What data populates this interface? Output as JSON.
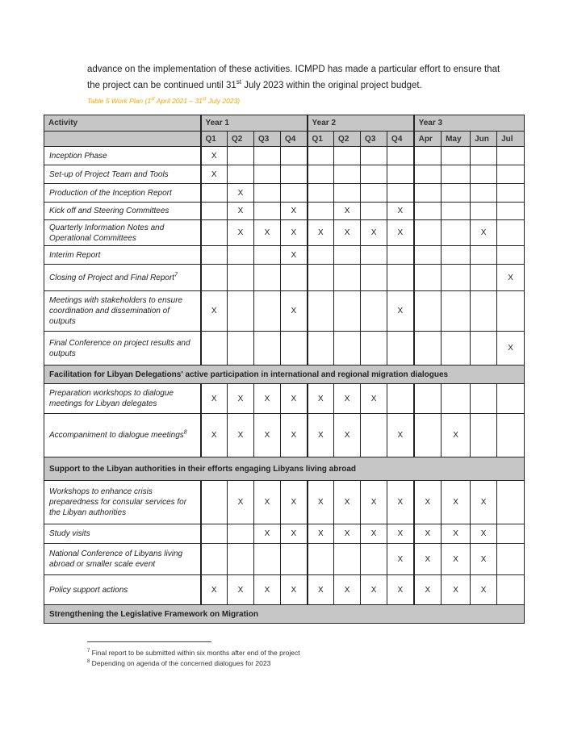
{
  "intro": {
    "line1": "advance on the implementation of these activities. ICMPD has made a particular effort to ensure that",
    "line2_pre": "the project can be continued until 31",
    "line2_sup": "st",
    "line2_post": " July 2023 within the original project budget."
  },
  "caption": {
    "pre": "Table 5 Work Plan (1",
    "sup1": "st",
    "mid": " April 2021 – 31",
    "sup2": "st",
    "post": " July 2023)"
  },
  "table": {
    "header": {
      "activity": "Activity",
      "years": [
        "Year 1",
        "Year 2",
        "Year 3"
      ]
    },
    "subheader": [
      "Q1",
      "Q2",
      "Q3",
      "Q4",
      "Q1",
      "Q2",
      "Q3",
      "Q4",
      "Apr",
      "May",
      "Jun",
      "Jul"
    ],
    "rows": [
      {
        "label": "Inception Phase",
        "cells": [
          "X",
          "",
          "",
          "",
          "",
          "",
          "",
          "",
          "",
          "",
          "",
          ""
        ]
      },
      {
        "label": "Set-up of Project Team and Tools",
        "cells": [
          "X",
          "",
          "",
          "",
          "",
          "",
          "",
          "",
          "",
          "",
          "",
          ""
        ]
      },
      {
        "label": "Production of the Inception Report",
        "cells": [
          "",
          "X",
          "",
          "",
          "",
          "",
          "",
          "",
          "",
          "",
          "",
          ""
        ]
      },
      {
        "label": "Kick off and Steering Committees",
        "cells": [
          "",
          "X",
          "",
          "X",
          "",
          "X",
          "",
          "X",
          "",
          "",
          "",
          ""
        ]
      },
      {
        "label": "Quarterly Information Notes and Operational Committees",
        "cells": [
          "",
          "X",
          "X",
          "X",
          "X",
          "X",
          "X",
          "X",
          "",
          "",
          "X",
          ""
        ]
      },
      {
        "label": "Interim Report",
        "cells": [
          "",
          "",
          "",
          "X",
          "",
          "",
          "",
          "",
          "",
          "",
          "",
          ""
        ]
      },
      {
        "label": "Closing of Project and Final Report",
        "sup": "7",
        "cells": [
          "",
          "",
          "",
          "",
          "",
          "",
          "",
          "",
          "",
          "",
          "",
          "X"
        ]
      },
      {
        "label": "Meetings with stakeholders to ensure coordination and dissemination of outputs",
        "cells": [
          "X",
          "",
          "",
          "X",
          "",
          "",
          "",
          "X",
          "",
          "",
          "",
          ""
        ]
      },
      {
        "label": "Final Conference on project results and outputs",
        "cells": [
          "",
          "",
          "",
          "",
          "",
          "",
          "",
          "",
          "",
          "",
          "",
          "X"
        ]
      },
      {
        "section": "Facilitation for Libyan Delegations' active participation in international and regional migration dialogues"
      },
      {
        "label": "Preparation workshops to dialogue meetings for Libyan delegates",
        "cells": [
          "X",
          "X",
          "X",
          "X",
          "X",
          "X",
          "X",
          "",
          "",
          "",
          "",
          ""
        ]
      },
      {
        "label": "Accompaniment to dialogue meetings",
        "sup": "8",
        "cells": [
          "X",
          "X",
          "X",
          "X",
          "X",
          "X",
          "",
          "X",
          "",
          "X",
          "",
          ""
        ]
      },
      {
        "section": "Support to the Libyan authorities in their efforts engaging Libyans living abroad"
      },
      {
        "label": "Workshops to enhance crisis preparedness for consular services for the Libyan authorities",
        "cells": [
          "",
          "X",
          "X",
          "X",
          "X",
          "X",
          "X",
          "X",
          "X",
          "X",
          "X",
          ""
        ]
      },
      {
        "label": "Study visits",
        "cells": [
          "",
          "",
          "X",
          "X",
          "X",
          "X",
          "X",
          "X",
          "X",
          "X",
          "X",
          ""
        ]
      },
      {
        "label": "National Conference of Libyans living abroad or smaller scale event",
        "cells": [
          "",
          "",
          "",
          "",
          "",
          "",
          "",
          "X",
          "X",
          "X",
          "X",
          ""
        ]
      },
      {
        "label": "Policy support actions",
        "cells": [
          "X",
          "X",
          "X",
          "X",
          "X",
          "X",
          "X",
          "X",
          "X",
          "X",
          "X",
          ""
        ]
      },
      {
        "section": "Strengthening the Legislative Framework on Migration"
      }
    ]
  },
  "footnotes": [
    {
      "num": "7",
      "text": " Final report to be submitted within six months after end of the project"
    },
    {
      "num": "8",
      "text": " Depending on agenda of the concerned dialogues for 2023"
    }
  ]
}
